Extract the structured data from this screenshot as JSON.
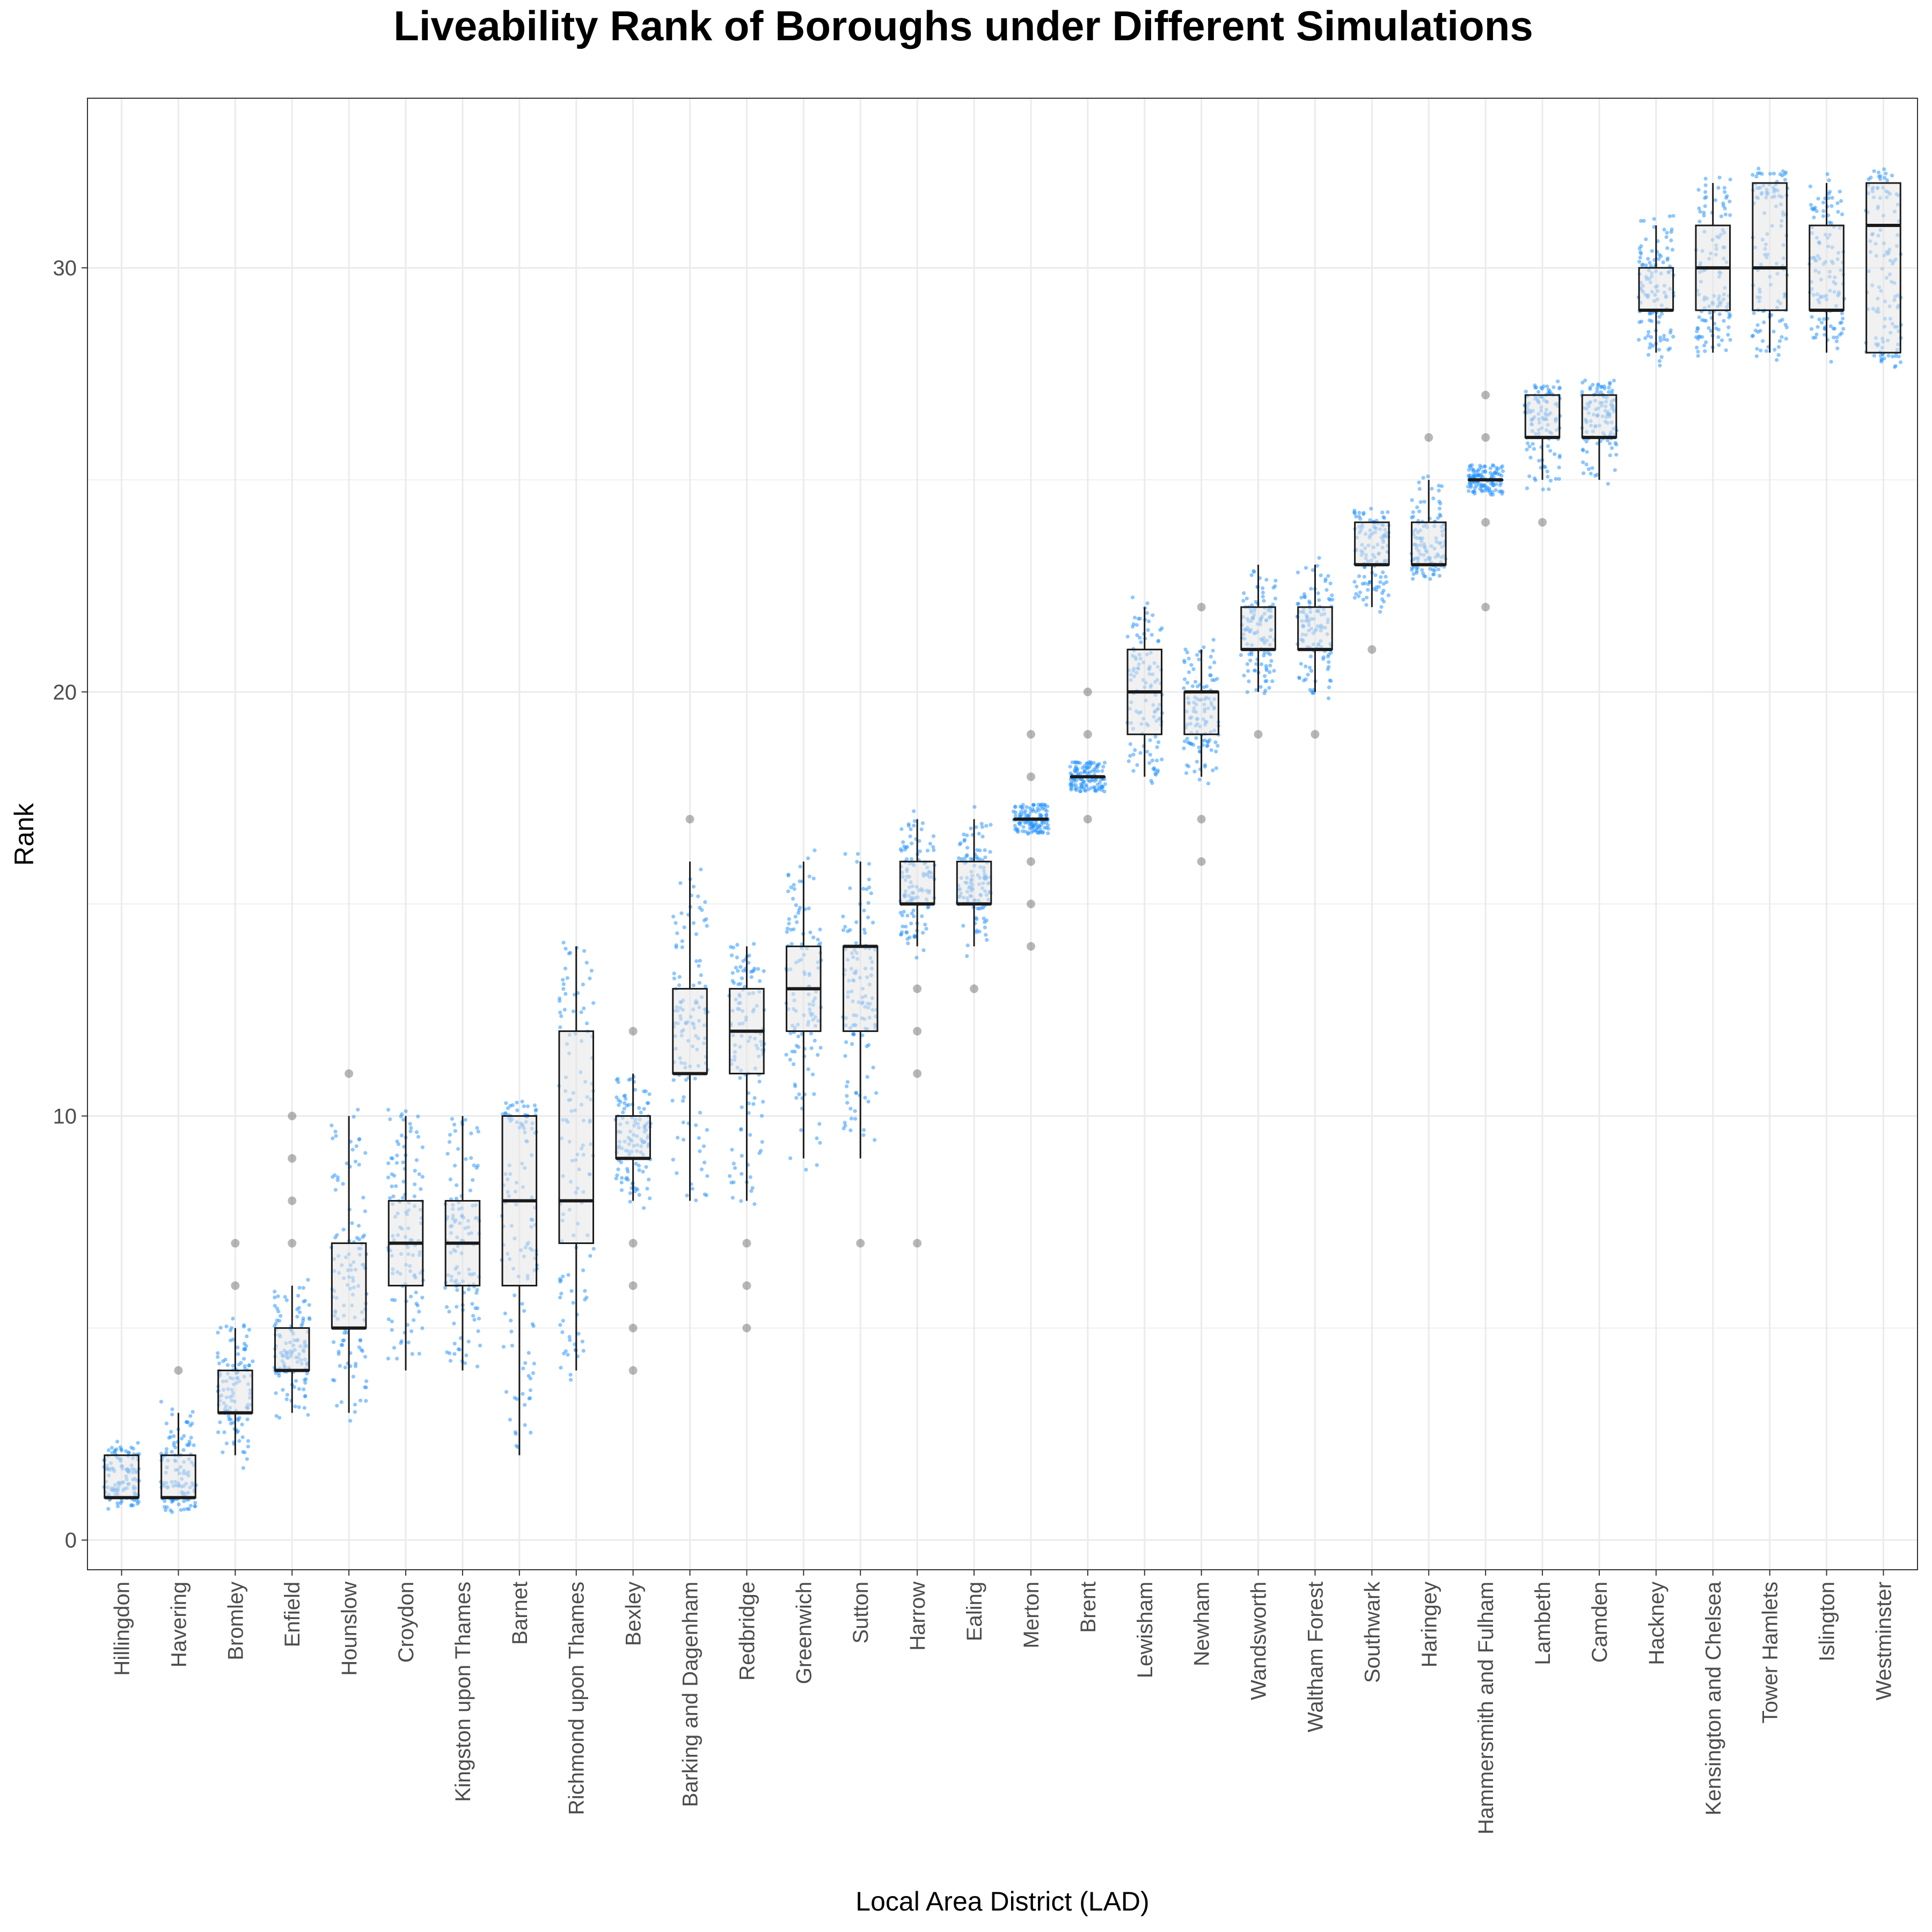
{
  "chart_data": {
    "type": "boxplot",
    "title": "Liveability Rank of Boroughs under Different Simulations",
    "xlabel": "Local Area District (LAD)",
    "ylabel": "Rank",
    "ylim": [
      -0.7,
      34
    ],
    "yticks": [
      0,
      10,
      20,
      30
    ],
    "grid": true,
    "legend": "none",
    "colors": {
      "jitter": "#1E90FF",
      "box_fill": "#e6e6e6",
      "box_line": "#1a1a1a",
      "grid": "#ebebeb",
      "outlier": "#333333"
    },
    "categories": [
      "Hillingdon",
      "Havering",
      "Bromley",
      "Enfield",
      "Hounslow",
      "Croydon",
      "Kingston upon Thames",
      "Barnet",
      "Richmond upon Thames",
      "Bexley",
      "Barking and Dagenham",
      "Redbridge",
      "Greenwich",
      "Sutton",
      "Harrow",
      "Ealing",
      "Merton",
      "Brent",
      "Lewisham",
      "Newham",
      "Wandsworth",
      "Waltham Forest",
      "Southwark",
      "Haringey",
      "Hammersmith and Fulham",
      "Lambeth",
      "Camden",
      "Hackney",
      "Kensington and Chelsea",
      "Tower Hamlets",
      "Islington",
      "Westminster"
    ],
    "boxes": [
      {
        "min": 1,
        "q1": 1,
        "median": 1,
        "q3": 2,
        "max": 2,
        "outliers": []
      },
      {
        "min": 1,
        "q1": 1,
        "median": 1,
        "q3": 2,
        "max": 3,
        "outliers": [
          4
        ]
      },
      {
        "min": 2,
        "q1": 3,
        "median": 3,
        "q3": 4,
        "max": 5,
        "outliers": [
          6,
          7
        ]
      },
      {
        "min": 3,
        "q1": 4,
        "median": 4,
        "q3": 5,
        "max": 6,
        "outliers": [
          7,
          8,
          9,
          10
        ]
      },
      {
        "min": 3,
        "q1": 5,
        "median": 5,
        "q3": 7,
        "max": 10,
        "outliers": [
          11
        ]
      },
      {
        "min": 4,
        "q1": 6,
        "median": 7,
        "q3": 8,
        "max": 10,
        "outliers": []
      },
      {
        "min": 4,
        "q1": 6,
        "median": 7,
        "q3": 8,
        "max": 10,
        "outliers": []
      },
      {
        "min": 2,
        "q1": 6,
        "median": 8,
        "q3": 10,
        "max": 10,
        "outliers": []
      },
      {
        "min": 4,
        "q1": 7,
        "median": 8,
        "q3": 12,
        "max": 14,
        "outliers": []
      },
      {
        "min": 8,
        "q1": 9,
        "median": 9,
        "q3": 10,
        "max": 11,
        "outliers": [
          4,
          5,
          6,
          7,
          12
        ]
      },
      {
        "min": 8,
        "q1": 11,
        "median": 11,
        "q3": 13,
        "max": 16,
        "outliers": [
          17
        ]
      },
      {
        "min": 8,
        "q1": 11,
        "median": 12,
        "q3": 13,
        "max": 14,
        "outliers": [
          5,
          6,
          7
        ]
      },
      {
        "min": 9,
        "q1": 12,
        "median": 13,
        "q3": 14,
        "max": 16,
        "outliers": []
      },
      {
        "min": 9,
        "q1": 12,
        "median": 14,
        "q3": 14,
        "max": 16,
        "outliers": [
          7
        ]
      },
      {
        "min": 14,
        "q1": 15,
        "median": 15,
        "q3": 16,
        "max": 17,
        "outliers": [
          7,
          11,
          12,
          13
        ]
      },
      {
        "min": 14,
        "q1": 15,
        "median": 15,
        "q3": 16,
        "max": 17,
        "outliers": [
          13
        ]
      },
      {
        "min": 17,
        "q1": 17,
        "median": 17,
        "q3": 17,
        "max": 17,
        "outliers": [
          14,
          15,
          16,
          18,
          19
        ]
      },
      {
        "min": 18,
        "q1": 18,
        "median": 18,
        "q3": 18,
        "max": 18,
        "outliers": [
          17,
          19,
          20
        ]
      },
      {
        "min": 18,
        "q1": 19,
        "median": 20,
        "q3": 21,
        "max": 22,
        "outliers": []
      },
      {
        "min": 18,
        "q1": 19,
        "median": 20,
        "q3": 20,
        "max": 21,
        "outliers": [
          16,
          17,
          22
        ]
      },
      {
        "min": 20,
        "q1": 21,
        "median": 21,
        "q3": 22,
        "max": 23,
        "outliers": [
          19
        ]
      },
      {
        "min": 20,
        "q1": 21,
        "median": 21,
        "q3": 22,
        "max": 23,
        "outliers": [
          19
        ]
      },
      {
        "min": 22,
        "q1": 23,
        "median": 23,
        "q3": 24,
        "max": 24,
        "outliers": [
          21
        ]
      },
      {
        "min": 23,
        "q1": 23,
        "median": 23,
        "q3": 24,
        "max": 25,
        "outliers": [
          26
        ]
      },
      {
        "min": 25,
        "q1": 25,
        "median": 25,
        "q3": 25,
        "max": 25,
        "outliers": [
          22,
          24,
          26,
          27
        ]
      },
      {
        "min": 25,
        "q1": 26,
        "median": 26,
        "q3": 27,
        "max": 27,
        "outliers": [
          24
        ]
      },
      {
        "min": 25,
        "q1": 26,
        "median": 26,
        "q3": 27,
        "max": 27,
        "outliers": []
      },
      {
        "min": 28,
        "q1": 29,
        "median": 29,
        "q3": 30,
        "max": 31,
        "outliers": []
      },
      {
        "min": 28,
        "q1": 29,
        "median": 30,
        "q3": 31,
        "max": 32,
        "outliers": []
      },
      {
        "min": 28,
        "q1": 29,
        "median": 30,
        "q3": 32,
        "max": 32,
        "outliers": []
      },
      {
        "min": 28,
        "q1": 29,
        "median": 29,
        "q3": 31,
        "max": 32,
        "outliers": []
      },
      {
        "min": 28,
        "q1": 28,
        "median": 31,
        "q3": 32,
        "max": 32,
        "outliers": []
      }
    ]
  }
}
